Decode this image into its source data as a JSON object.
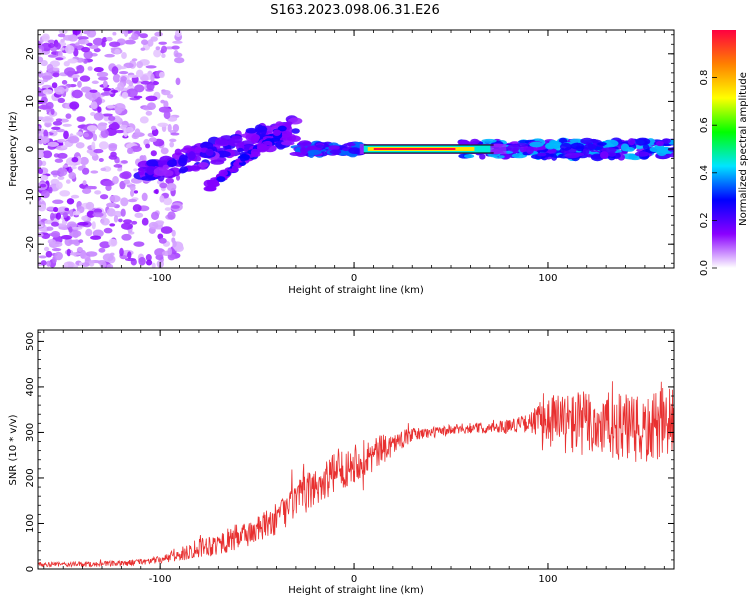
{
  "title": "S163.2023.098.06.31.E26",
  "chart_data": [
    {
      "type": "heatmap",
      "xlabel": "Height of straight line (km)",
      "ylabel": "Frequency (Hz)",
      "xlim": [
        -163,
        165
      ],
      "ylim": [
        -25,
        25
      ],
      "xticks": [
        -100,
        0,
        100
      ],
      "yticks": [
        -20,
        -10,
        0,
        10,
        20
      ],
      "colorbar": {
        "label": "Normalized spectral amplitude",
        "range": [
          0,
          1
        ],
        "ticks": [
          0.0,
          0.2,
          0.4,
          0.6,
          0.8
        ],
        "tick_labels": [
          "0.0",
          "0.2",
          "0.4",
          "0.6",
          "0.8"
        ],
        "colors": [
          "#ffffff",
          "#8a00ff",
          "#0000ff",
          "#00e5ff",
          "#00ff00",
          "#ffff00",
          "#ff8000",
          "#ff0040"
        ]
      },
      "features": [
        {
          "x": [
            -163,
            -110
          ],
          "freq_range": [
            -25,
            25
          ],
          "amplitude": 0.15
        },
        {
          "x": [
            -110,
            -30
          ],
          "freq_center": [
            -5,
            4
          ],
          "amplitude": 0.3
        },
        {
          "x": [
            -75,
            -35
          ],
          "freq_center": [
            -8,
            5
          ],
          "amplitude": 0.3
        },
        {
          "x": [
            -30,
            5
          ],
          "freq_center": [
            0,
            0
          ],
          "amplitude": 0.35
        },
        {
          "x": [
            5,
            60
          ],
          "freq_center": [
            0,
            0
          ],
          "amplitude": 0.95
        },
        {
          "x": [
            60,
            165
          ],
          "freq_center": [
            0,
            0
          ],
          "amplitude": 0.45
        }
      ]
    },
    {
      "type": "line",
      "xlabel": "Height of straight line (km)",
      "ylabel": "SNR (10 * v/v)",
      "xlim": [
        -163,
        165
      ],
      "ylim": [
        0,
        525
      ],
      "xticks": [
        -100,
        0,
        100
      ],
      "yticks": [
        0,
        100,
        200,
        300,
        400,
        500
      ],
      "color": "#e83030",
      "series": [
        {
          "x": [
            -163,
            -140,
            -120,
            -100,
            -90,
            -80,
            -70,
            -60,
            -50,
            -40,
            -30,
            -20,
            -10,
            0,
            10,
            20,
            30,
            40,
            50,
            60,
            70,
            80,
            90,
            100,
            110,
            120,
            130,
            140,
            150,
            160,
            165
          ],
          "values": [
            10,
            10,
            12,
            20,
            30,
            50,
            55,
            70,
            85,
            110,
            150,
            180,
            210,
            235,
            250,
            275,
            295,
            300,
            305,
            310,
            310,
            315,
            320,
            330,
            320,
            320,
            315,
            310,
            300,
            320,
            320
          ],
          "noise": [
            5,
            6,
            6,
            8,
            14,
            25,
            25,
            30,
            30,
            35,
            40,
            45,
            45,
            45,
            40,
            25,
            15,
            12,
            12,
            12,
            12,
            15,
            20,
            60,
            70,
            75,
            75,
            75,
            75,
            80,
            80
          ]
        }
      ]
    }
  ]
}
